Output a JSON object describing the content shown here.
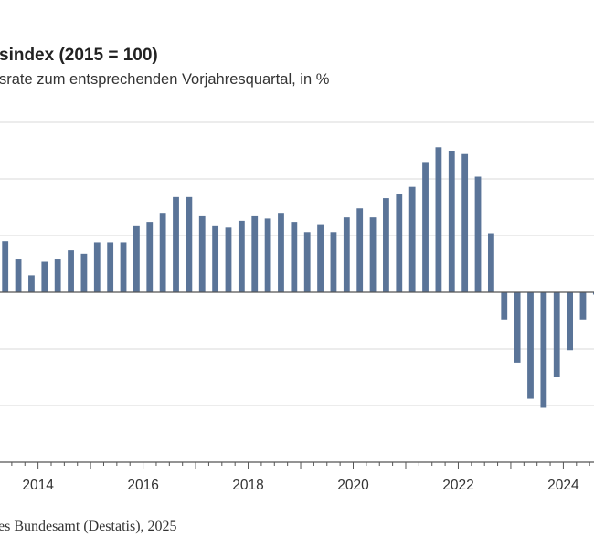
{
  "chart_data": {
    "type": "bar",
    "title": "sindex (2015 = 100)",
    "subtitle": "srate zum entsprechenden Vorjahresquartal, in %",
    "source": "es Bundesamt (Destatis), 2025",
    "xlabel": "",
    "ylabel": "",
    "ylim": [
      -15,
      15
    ],
    "gridlines": [
      -10,
      -5,
      0,
      5,
      10,
      15
    ],
    "grid": true,
    "bar_color": "#5a7498",
    "first_quarter": "2013-Q2",
    "x_tick_labels": [
      "2014",
      "2016",
      "2018",
      "2020",
      "2022",
      "2024"
    ],
    "x_tick_years": [
      2014,
      2016,
      2018,
      2020,
      2022,
      2024
    ],
    "values": [
      4.5,
      2.9,
      1.5,
      2.7,
      2.9,
      3.7,
      3.4,
      4.4,
      4.4,
      4.4,
      5.9,
      6.2,
      7.0,
      8.4,
      8.4,
      6.7,
      5.9,
      5.7,
      6.3,
      6.7,
      6.5,
      7.0,
      6.2,
      5.3,
      6.0,
      5.3,
      6.6,
      7.4,
      6.6,
      8.3,
      8.7,
      9.3,
      11.5,
      12.8,
      12.5,
      12.2,
      10.2,
      5.2,
      -2.4,
      -6.2,
      -9.4,
      -10.2,
      -7.5,
      -5.1,
      -2.4,
      -0.2
    ]
  }
}
